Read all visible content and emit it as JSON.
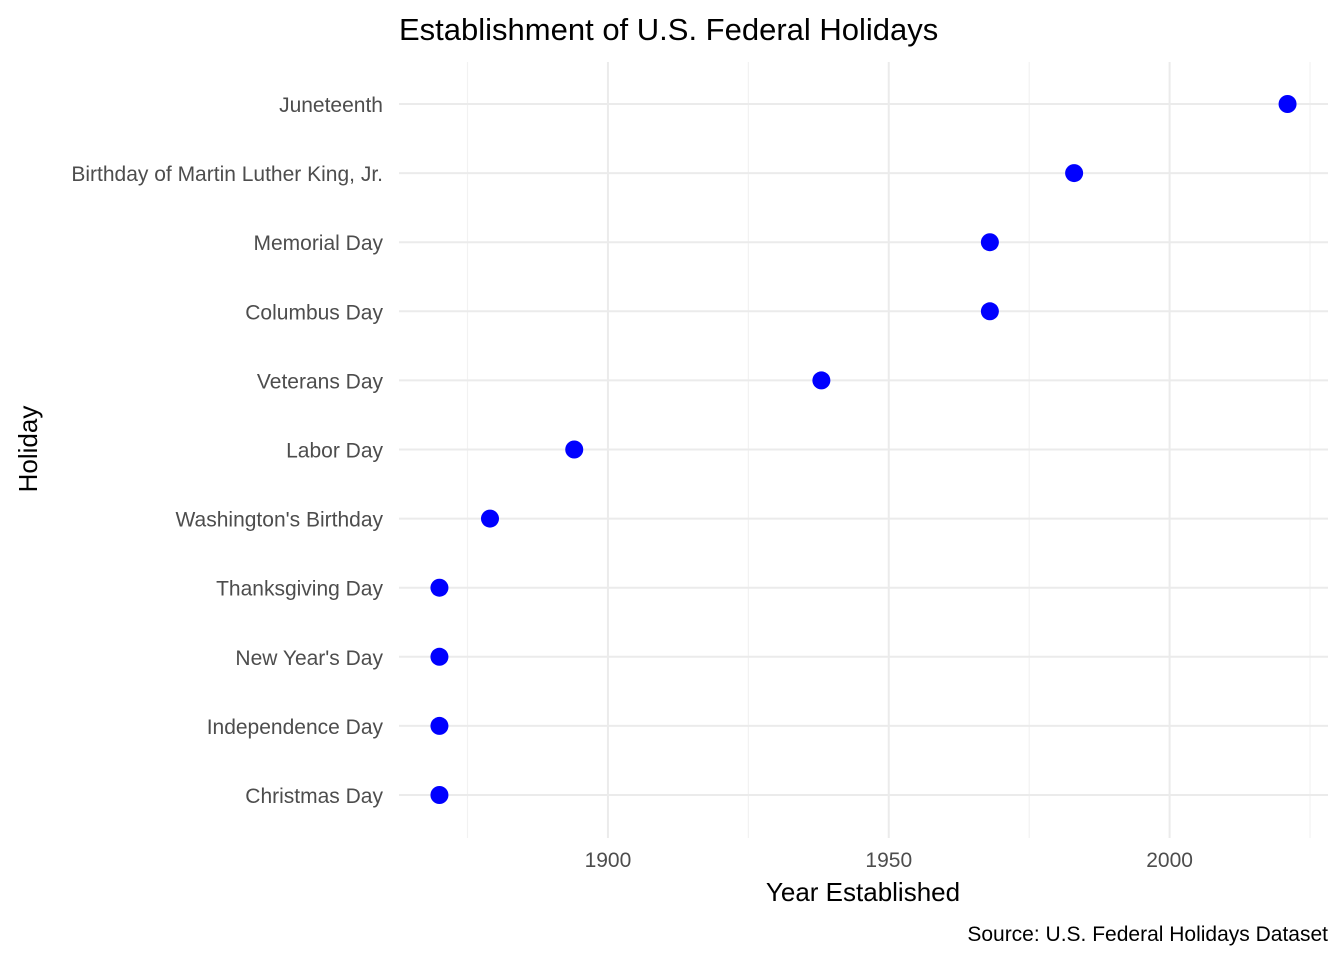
{
  "chart_data": {
    "type": "scatter",
    "title": "Establishment of U.S. Federal Holidays",
    "xlabel": "Year Established",
    "ylabel": "Holiday",
    "caption": "Source: U.S. Federal Holidays Dataset",
    "xlim": [
      1862.8,
      2028.2
    ],
    "x_ticks": [
      1900,
      1950,
      2000
    ],
    "x_minor_ticks": [
      1875,
      1925,
      1975,
      2025
    ],
    "point_color": "#0000ff",
    "grid": true,
    "legend": "none",
    "categories": [
      "Christmas Day",
      "Independence Day",
      "New Year's Day",
      "Thanksgiving Day",
      "Washington's Birthday",
      "Labor Day",
      "Veterans Day",
      "Columbus Day",
      "Memorial Day",
      "Birthday of Martin Luther King, Jr.",
      "Juneteenth"
    ],
    "values": [
      1870,
      1870,
      1870,
      1870,
      1879,
      1894,
      1938,
      1968,
      1968,
      1983,
      2021
    ]
  }
}
